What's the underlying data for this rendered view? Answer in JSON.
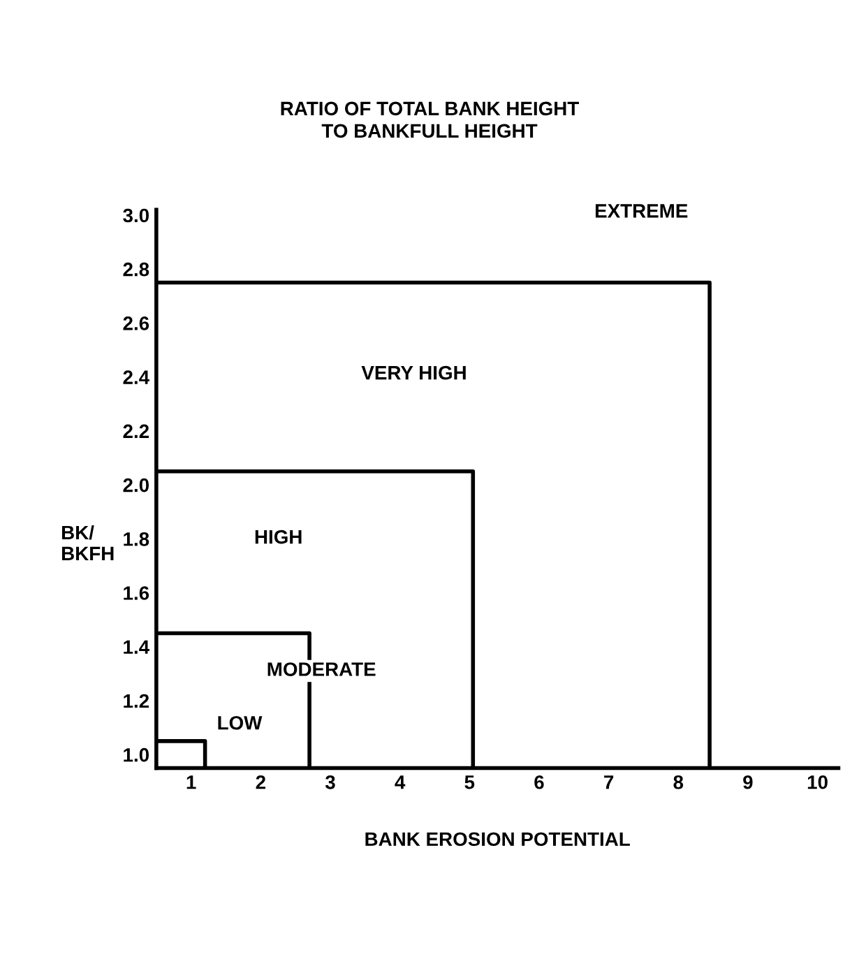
{
  "chart_data": {
    "type": "line",
    "title": "RATIO OF TOTAL BANK HEIGHT\nTO BANKFULL HEIGHT",
    "xlabel": "BANK EROSION POTENTIAL",
    "ylabel": "BK/\nBKFH",
    "series": [
      {
        "color": "#000000",
        "x": [
          0.5,
          1.2,
          1.2
        ],
        "values": [
          1.05,
          1.05,
          0.95
        ]
      },
      {
        "color": "#000000",
        "x": [
          0.5,
          2.7,
          2.7
        ],
        "values": [
          1.45,
          1.45,
          0.95
        ]
      },
      {
        "color": "#000000",
        "x": [
          0.5,
          5.05,
          5.05
        ],
        "values": [
          2.05,
          2.05,
          0.95
        ]
      },
      {
        "color": "#000000",
        "x": [
          0.5,
          8.45,
          8.45
        ],
        "values": [
          2.75,
          2.75,
          0.95
        ]
      }
    ],
    "annotations": [
      "LOW",
      "MODERATE",
      "HIGH",
      "VERY HIGH",
      "EXTREME"
    ],
    "xlim": [
      0.5,
      10.3
    ],
    "ylim": [
      0.95,
      3.02
    ],
    "xticks": [
      1,
      2,
      3,
      4,
      5,
      6,
      7,
      8,
      9,
      10
    ],
    "yticks": [
      {
        "value": 1.0,
        "label": "1.0"
      },
      {
        "value": 1.2,
        "label": "1.2"
      },
      {
        "value": 1.4,
        "label": "1.4"
      },
      {
        "value": 1.6,
        "label": "1.6"
      },
      {
        "value": 1.8,
        "label": "1.8"
      },
      {
        "value": 2.0,
        "label": "2.0"
      },
      {
        "value": 2.2,
        "label": "2.2"
      },
      {
        "value": 2.4,
        "label": "2.4"
      },
      {
        "value": 2.6,
        "label": "2.6"
      },
      {
        "value": 2.8,
        "label": "2.8"
      },
      {
        "value": 3.0,
        "label": "3.0"
      }
    ],
    "grid": false,
    "marker": "none",
    "line_style": "solid"
  }
}
